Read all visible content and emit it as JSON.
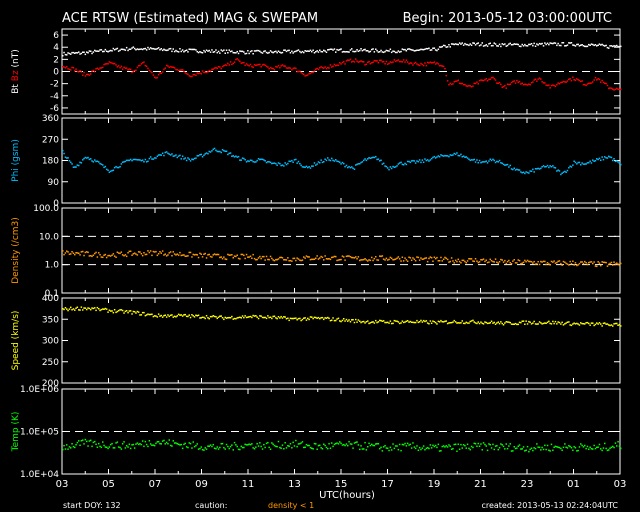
{
  "header": {
    "title": "ACE RTSW (Estimated) MAG & SWEPAM",
    "begin": "Begin: 2013-05-12 03:00:00UTC"
  },
  "footer": {
    "start_doy": "start DOY: 132",
    "caution": "caution:",
    "density_note": "density < 1",
    "created": "created: 2013-05-13 02:24:04UTC"
  },
  "colors": {
    "background": "#000000",
    "axes": "#ffffff",
    "bt": "#ffffff",
    "bz": "#ff0000",
    "phi": "#00bfff",
    "density": "#ff9900",
    "speed": "#ffff00",
    "temp": "#00ff00"
  },
  "chart_data": {
    "type": "scatter",
    "xlabel": "UTC(hours)",
    "x_ticks": [
      "03",
      "05",
      "07",
      "09",
      "11",
      "13",
      "15",
      "17",
      "19",
      "21",
      "23",
      "01",
      "03"
    ],
    "x_range_hours": [
      0,
      24
    ],
    "panels": [
      {
        "id": "mag",
        "ylabel_parts": [
          {
            "text": "Bt",
            "color": "#ffffff"
          },
          {
            "text": "Bz",
            "color": "#ff0000"
          },
          {
            "text": "(nT)",
            "color": "#ffffff"
          }
        ],
        "yscale": "linear",
        "ylim": [
          -7,
          7
        ],
        "yticks": [
          "-6",
          "-4",
          "-2",
          "0",
          "2",
          "4",
          "6"
        ],
        "ytick_values": [
          -6,
          -4,
          -2,
          0,
          2,
          4,
          6
        ],
        "dashed_lines": [
          0
        ],
        "series": [
          {
            "key": "bt",
            "color": "#ffffff",
            "x": [
              0,
              1,
              2,
              3,
              4,
              5,
              6,
              7,
              8,
              9,
              10,
              11,
              12,
              13,
              14,
              15,
              16,
              16.5,
              17,
              18,
              19,
              20,
              21,
              22,
              23,
              23.5,
              24
            ],
            "y": [
              3.0,
              3.2,
              3.6,
              3.9,
              3.8,
              3.6,
              3.5,
              3.4,
              3.3,
              3.3,
              3.4,
              3.5,
              3.6,
              3.6,
              3.5,
              3.6,
              3.7,
              4.3,
              4.6,
              4.6,
              4.5,
              4.5,
              4.6,
              4.6,
              4.4,
              4.2,
              4.5
            ]
          },
          {
            "key": "bz",
            "color": "#ff0000",
            "x": [
              0,
              0.5,
              1,
              1.5,
              2,
              2.5,
              3,
              3.5,
              4,
              4.5,
              5,
              5.5,
              6,
              6.5,
              7,
              7.5,
              8,
              8.5,
              9,
              9.5,
              10,
              10.5,
              11,
              11.5,
              12,
              12.5,
              13,
              13.5,
              14,
              14.5,
              15,
              15.5,
              16,
              16.4,
              16.6,
              17,
              17.5,
              18,
              18.5,
              19,
              19.5,
              20,
              20.5,
              21,
              21.5,
              22,
              22.5,
              23,
              23.5,
              24
            ],
            "y": [
              1,
              0.5,
              -0.5,
              0.5,
              1.5,
              0.8,
              0.2,
              1.5,
              -1,
              1,
              0.5,
              -0.5,
              0,
              0.5,
              1,
              2,
              1,
              1.2,
              0.6,
              1,
              0.5,
              -0.5,
              0.5,
              1,
              1.5,
              2,
              1.5,
              1.8,
              1.5,
              2,
              1.5,
              1.3,
              1.5,
              1.2,
              -2,
              -1.5,
              -2.5,
              -1.5,
              -1,
              -2.5,
              -1.5,
              -2,
              -1,
              -2.5,
              -1.5,
              -1,
              -2,
              -1,
              -2.5,
              -3
            ]
          }
        ]
      },
      {
        "id": "phi",
        "ylabel_parts": [
          {
            "text": "Phi (gsm)",
            "color": "#00bfff"
          }
        ],
        "yscale": "linear",
        "ylim": [
          0,
          360
        ],
        "yticks": [
          "0",
          "90",
          "180",
          "270",
          "360"
        ],
        "ytick_values": [
          0,
          90,
          180,
          270,
          360
        ],
        "dashed_lines": [],
        "series": [
          {
            "key": "phi",
            "color": "#00bfff",
            "x": [
              0,
              0.5,
              1,
              1.5,
              2,
              2.5,
              3,
              3.5,
              4,
              4.5,
              5,
              5.5,
              6,
              6.5,
              7,
              7.5,
              8,
              8.5,
              9,
              9.5,
              10,
              10.5,
              11,
              11.5,
              12,
              12.5,
              13,
              13.5,
              14,
              14.5,
              15,
              15.5,
              16,
              16.5,
              17,
              17.5,
              18,
              18.5,
              19,
              19.5,
              20,
              20.5,
              21,
              21.5,
              22,
              22.5,
              23,
              23.5,
              24
            ],
            "y": [
              220,
              150,
              200,
              175,
              140,
              165,
              190,
              180,
              200,
              215,
              200,
              185,
              205,
              230,
              220,
              195,
              180,
              185,
              170,
              165,
              185,
              150,
              175,
              190,
              170,
              150,
              185,
              195,
              150,
              170,
              175,
              180,
              195,
              205,
              210,
              190,
              175,
              185,
              170,
              140,
              130,
              150,
              160,
              125,
              175,
              170,
              185,
              200,
              165
            ]
          }
        ]
      },
      {
        "id": "density",
        "ylabel_parts": [
          {
            "text": "Density (/cm3)",
            "color": "#ff9900"
          }
        ],
        "yscale": "log",
        "ylim": [
          0.1,
          100
        ],
        "yticks": [
          "0.1",
          "1.0",
          "10.0",
          "100.0"
        ],
        "ytick_values": [
          0.1,
          1,
          10,
          100
        ],
        "dashed_lines": [
          1,
          10
        ],
        "series": [
          {
            "key": "density",
            "color": "#ff9900",
            "x": [
              0,
              1,
              2,
              3,
              4,
              5,
              6,
              7,
              8,
              9,
              10,
              11,
              12,
              13,
              14,
              15,
              16,
              17,
              18,
              19,
              20,
              21,
              22,
              23,
              24
            ],
            "y": [
              2.8,
              2.5,
              2.3,
              2.6,
              2.8,
              2.5,
              2.2,
              2.0,
              2.0,
              1.8,
              1.7,
              1.9,
              1.8,
              1.7,
              1.8,
              1.7,
              1.6,
              1.5,
              1.5,
              1.3,
              1.3,
              1.2,
              1.2,
              1.1,
              1.1
            ]
          }
        ]
      },
      {
        "id": "speed",
        "ylabel_parts": [
          {
            "text": "Speed (km/s)",
            "color": "#ffff00"
          }
        ],
        "yscale": "linear",
        "ylim": [
          200,
          400
        ],
        "yticks": [
          "200",
          "250",
          "300",
          "350",
          "400"
        ],
        "ytick_values": [
          200,
          250,
          300,
          350,
          400
        ],
        "dashed_lines": [],
        "series": [
          {
            "key": "speed",
            "color": "#ffff00",
            "x": [
              0,
              1,
              2,
              3,
              4,
              5,
              6,
              7,
              8,
              9,
              10,
              11,
              12,
              13,
              14,
              15,
              16,
              17,
              18,
              19,
              20,
              21,
              22,
              23,
              24
            ],
            "y": [
              375,
              378,
              372,
              368,
              360,
              360,
              358,
              355,
              358,
              356,
              352,
              354,
              350,
              346,
              345,
              346,
              344,
              346,
              345,
              342,
              344,
              344,
              341,
              340,
              338
            ]
          }
        ]
      },
      {
        "id": "temp",
        "ylabel_parts": [
          {
            "text": "Temp (K)",
            "color": "#00ff00"
          }
        ],
        "yscale": "log",
        "ylim": [
          10000,
          1000000
        ],
        "yticks": [
          "1.0E+04",
          "1.0E+05",
          "1.0E+06"
        ],
        "ytick_values": [
          10000,
          100000,
          1000000
        ],
        "dashed_lines": [
          100000
        ],
        "series": [
          {
            "key": "temp",
            "color": "#00ff00",
            "x": [
              0,
              1,
              2,
              3,
              4,
              5,
              6,
              7,
              8,
              9,
              10,
              11,
              12,
              13,
              14,
              15,
              16,
              17,
              18,
              19,
              20,
              21,
              22,
              23,
              24
            ],
            "y": [
              45000,
              55000,
              50000,
              48000,
              60000,
              52000,
              46000,
              44000,
              50000,
              48000,
              52000,
              45000,
              50000,
              47000,
              43000,
              46000,
              42000,
              44000,
              46000,
              45000,
              43000,
              44000,
              45000,
              42000,
              50000
            ]
          }
        ]
      }
    ]
  }
}
